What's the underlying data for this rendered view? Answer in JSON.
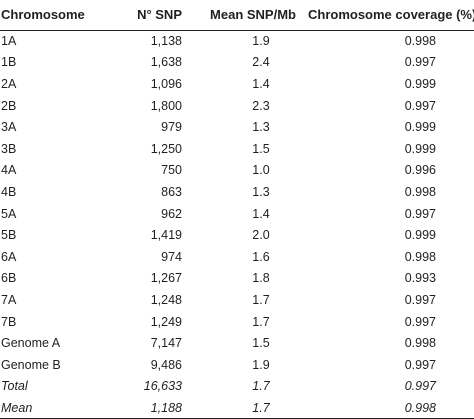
{
  "table": {
    "headers": {
      "chromosome": "Chromosome",
      "snp": "N° SNP",
      "mean": "Mean SNP/Mb",
      "coverage": "Chromosome coverage (%)"
    },
    "rows": [
      {
        "chromosome": "1A",
        "snp": "1,138",
        "mean": "1.9",
        "coverage": "0.998"
      },
      {
        "chromosome": "1B",
        "snp": "1,638",
        "mean": "2.4",
        "coverage": "0.997"
      },
      {
        "chromosome": "2A",
        "snp": "1,096",
        "mean": "1.4",
        "coverage": "0.999"
      },
      {
        "chromosome": "2B",
        "snp": "1,800",
        "mean": "2.3",
        "coverage": "0.997"
      },
      {
        "chromosome": "3A",
        "snp": "979",
        "mean": "1.3",
        "coverage": "0.999"
      },
      {
        "chromosome": "3B",
        "snp": "1,250",
        "mean": "1.5",
        "coverage": "0.999"
      },
      {
        "chromosome": "4A",
        "snp": "750",
        "mean": "1.0",
        "coverage": "0.996"
      },
      {
        "chromosome": "4B",
        "snp": "863",
        "mean": "1.3",
        "coverage": "0.998"
      },
      {
        "chromosome": "5A",
        "snp": "962",
        "mean": "1.4",
        "coverage": "0.997"
      },
      {
        "chromosome": "5B",
        "snp": "1,419",
        "mean": "2.0",
        "coverage": "0.999"
      },
      {
        "chromosome": "6A",
        "snp": "974",
        "mean": "1.6",
        "coverage": "0.998"
      },
      {
        "chromosome": "6B",
        "snp": "1,267",
        "mean": "1.8",
        "coverage": "0.993"
      },
      {
        "chromosome": "7A",
        "snp": "1,248",
        "mean": "1.7",
        "coverage": "0.997"
      },
      {
        "chromosome": "7B",
        "snp": "1,249",
        "mean": "1.7",
        "coverage": "0.997"
      },
      {
        "chromosome": "Genome A",
        "snp": "7,147",
        "mean": "1.5",
        "coverage": "0.998"
      },
      {
        "chromosome": "Genome B",
        "snp": "9,486",
        "mean": "1.9",
        "coverage": "0.997"
      },
      {
        "chromosome": "Total",
        "snp": "16,633",
        "mean": "1.7",
        "coverage": "0.997",
        "italic": true
      },
      {
        "chromosome": "Mean",
        "snp": "1,188",
        "mean": "1.7",
        "coverage": "0.998",
        "italic": true
      }
    ]
  }
}
